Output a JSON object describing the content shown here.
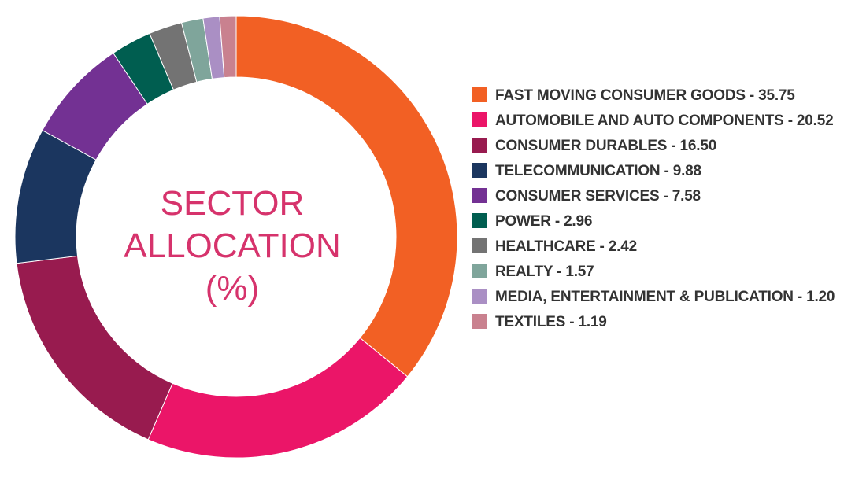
{
  "chart_data": {
    "type": "pie",
    "title": "SECTOR ALLOCATION (%)",
    "title_lines": [
      "SECTOR",
      "ALLOCATION",
      "(%)"
    ],
    "title_color": "#d6336c",
    "legend_placement": "right",
    "slices": [
      {
        "label": "FAST MOVING CONSUMER GOODS",
        "value": 35.75,
        "value_text": "35.75",
        "color": "#f26024"
      },
      {
        "label": "AUTOMOBILE AND AUTO COMPONENTS",
        "value": 20.52,
        "value_text": "20.52",
        "color": "#eb1568"
      },
      {
        "label": "CONSUMER DURABLES",
        "value": 16.5,
        "value_text": "16.50",
        "color": "#981b4f"
      },
      {
        "label": "TELECOMMUNICATION",
        "value": 9.88,
        "value_text": "9.88",
        "color": "#1b365f"
      },
      {
        "label": "CONSUMER SERVICES",
        "value": 7.58,
        "value_text": "7.58",
        "color": "#733193"
      },
      {
        "label": "POWER",
        "value": 2.96,
        "value_text": "2.96",
        "color": "#005e50"
      },
      {
        "label": "HEALTHCARE",
        "value": 2.42,
        "value_text": "2.42",
        "color": "#737373"
      },
      {
        "label": "REALTY",
        "value": 1.57,
        "value_text": "1.57",
        "color": "#7fa59b"
      },
      {
        "label": "MEDIA, ENTERTAINMENT & PUBLICATION",
        "value": 1.2,
        "value_text": "1.20",
        "color": "#aa8fc4"
      },
      {
        "label": "TEXTILES",
        "value": 1.19,
        "value_text": "1.19",
        "color": "#c9818f"
      }
    ]
  }
}
